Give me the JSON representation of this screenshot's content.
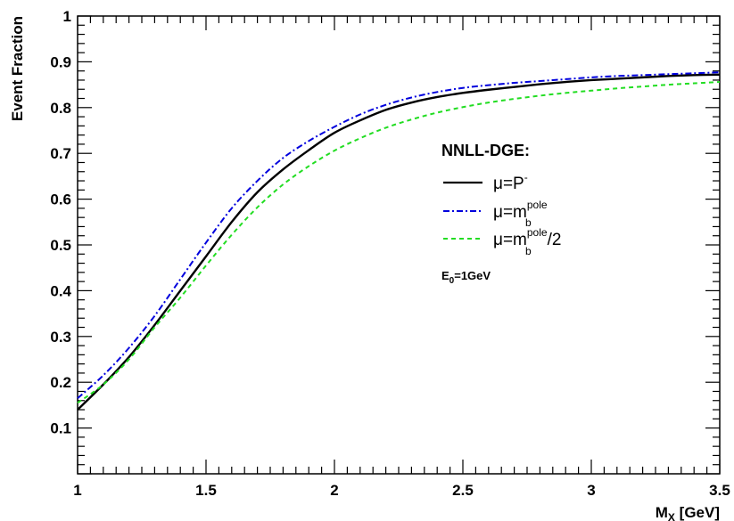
{
  "chart_data": {
    "type": "line",
    "title": "",
    "xlabel": "M_X [GeV]",
    "xlabel_main": "M",
    "xlabel_sub": "X",
    "xlabel_unit": " [GeV]",
    "ylabel": "Event Fraction",
    "xlim": [
      1.0,
      3.5
    ],
    "ylim": [
      0.0,
      1.0
    ],
    "x_ticks": [
      "1",
      "1.5",
      "2",
      "2.5",
      "3",
      "3.5"
    ],
    "y_ticks": [
      "0.1",
      "0.2",
      "0.3",
      "0.4",
      "0.5",
      "0.6",
      "0.7",
      "0.8",
      "0.9",
      "1"
    ],
    "grid": false,
    "legend": {
      "title": "NNLL-DGE:",
      "placement": "center-right",
      "entry_prefix": "μ=",
      "entry1_main": "P",
      "entry1_sup": "-",
      "entry2_main": "m",
      "entry2_sup": "pole",
      "entry2_sub": "b",
      "entry3_main": "m",
      "entry3_sup": "pole",
      "entry3_sub": "b",
      "entry3_suffix": "/2"
    },
    "annotation": {
      "main": "E",
      "sub": "0",
      "rest": "=1GeV"
    },
    "x": [
      1.0,
      1.1,
      1.2,
      1.3,
      1.4,
      1.5,
      1.6,
      1.7,
      1.8,
      1.9,
      2.0,
      2.1,
      2.2,
      2.3,
      2.4,
      2.5,
      2.6,
      2.7,
      2.8,
      2.9,
      3.0,
      3.1,
      3.2,
      3.3,
      3.4,
      3.5
    ],
    "series": [
      {
        "label": "μ=P⁻",
        "color": "#000000",
        "style": "solid",
        "values": [
          0.14,
          0.195,
          0.255,
          0.325,
          0.4,
          0.475,
          0.55,
          0.615,
          0.665,
          0.707,
          0.745,
          0.772,
          0.795,
          0.811,
          0.823,
          0.832,
          0.839,
          0.845,
          0.851,
          0.856,
          0.86,
          0.863,
          0.866,
          0.869,
          0.871,
          0.872
        ]
      },
      {
        "label": "μ=m_b^pole",
        "color": "#0000dd",
        "style": "dashdot",
        "values": [
          0.165,
          0.215,
          0.275,
          0.345,
          0.425,
          0.505,
          0.58,
          0.64,
          0.69,
          0.727,
          0.758,
          0.785,
          0.806,
          0.822,
          0.834,
          0.843,
          0.849,
          0.854,
          0.858,
          0.862,
          0.866,
          0.869,
          0.871,
          0.873,
          0.875,
          0.877
        ]
      },
      {
        "label": "μ=m_b^pole/2",
        "color": "#22dd22",
        "style": "dashed",
        "values": [
          0.155,
          0.195,
          0.25,
          0.32,
          0.385,
          0.455,
          0.522,
          0.582,
          0.632,
          0.672,
          0.706,
          0.733,
          0.756,
          0.774,
          0.789,
          0.801,
          0.811,
          0.819,
          0.826,
          0.832,
          0.837,
          0.842,
          0.846,
          0.85,
          0.853,
          0.856
        ]
      }
    ]
  }
}
